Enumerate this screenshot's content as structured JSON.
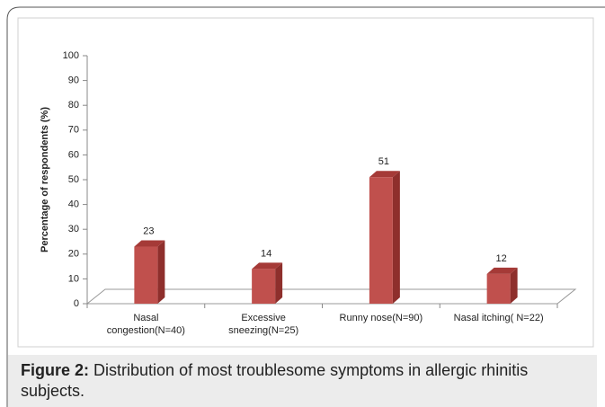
{
  "chart_data": {
    "type": "bar3d",
    "ylabel": "Percentage of respondents (%)",
    "categories": [
      "Nasal\ncongestion(N=40)",
      "Excessive\nsneezing(N=25)",
      "Runny nose(N=90)",
      "Nasal itching( N=22)"
    ],
    "values": [
      23,
      14,
      51,
      12
    ],
    "color": "#c0504d",
    "ylim": [
      0,
      100
    ],
    "yticks": [
      0,
      10,
      20,
      30,
      40,
      50,
      60,
      70,
      80,
      90,
      100
    ]
  },
  "caption": {
    "label": "Figure 2:",
    "text": "Distribution of most troublesome symptoms in allergic rhinitis subjects."
  }
}
